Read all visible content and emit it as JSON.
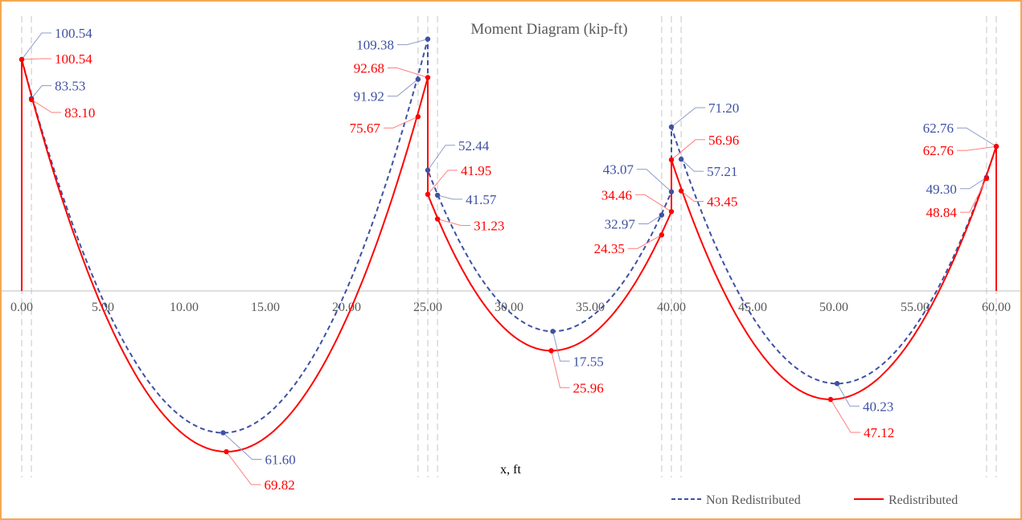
{
  "chart_data": {
    "type": "line",
    "title": "Moment Diagram (kip-ft)",
    "xlabel": "x, ft",
    "ylabel": "",
    "xlim": [
      0,
      60
    ],
    "x_ticks": [
      "0.00",
      "5.00",
      "10.00",
      "15.00",
      "20.00",
      "25.00",
      "30.00",
      "35.00",
      "40.00",
      "45.00",
      "50.00",
      "55.00",
      "60.00"
    ],
    "y_convention": "support moments plotted upward, span moments downward; labels print magnitudes",
    "legend_position": "bottom-right",
    "reference_lines_x": [
      0,
      0.6,
      24.4,
      25,
      25.6,
      39.4,
      40,
      40.6,
      59.4,
      60
    ],
    "series": [
      {
        "name": "Non Redistributed",
        "color": "#3F51A3",
        "style": "dashed",
        "spans": [
          {
            "start": [
              0,
              100.54
            ],
            "min": [
              12.4,
              -61.6
            ],
            "end": [
              25,
              109.38
            ]
          },
          {
            "start": [
              25,
              52.44
            ],
            "min": [
              32.7,
              -17.55
            ],
            "end": [
              40,
              43.07
            ]
          },
          {
            "start": [
              40,
              71.2
            ],
            "min": [
              50.2,
              -40.23
            ],
            "end": [
              60,
              62.76
            ]
          }
        ],
        "points": [
          {
            "x": 0,
            "y": 100.54,
            "label": "100.54"
          },
          {
            "x": 0.6,
            "y": 83.53,
            "label": "83.53"
          },
          {
            "x": 12.4,
            "y": -61.6,
            "label": "61.60"
          },
          {
            "x": 24.4,
            "y": 91.92,
            "label": "91.92"
          },
          {
            "x": 25,
            "y": 109.38,
            "label": "109.38"
          },
          {
            "x": 25,
            "y": 52.44,
            "label": "52.44"
          },
          {
            "x": 25.6,
            "y": 41.57,
            "label": "41.57"
          },
          {
            "x": 32.7,
            "y": -17.55,
            "label": "17.55"
          },
          {
            "x": 39.4,
            "y": 32.97,
            "label": "32.97"
          },
          {
            "x": 40,
            "y": 43.07,
            "label": "43.07"
          },
          {
            "x": 40,
            "y": 71.2,
            "label": "71.20"
          },
          {
            "x": 40.6,
            "y": 57.21,
            "label": "57.21"
          },
          {
            "x": 50.2,
            "y": -40.23,
            "label": "40.23"
          },
          {
            "x": 59.4,
            "y": 49.3,
            "label": "49.30"
          },
          {
            "x": 60,
            "y": 62.76,
            "label": "62.76"
          }
        ]
      },
      {
        "name": "Redistributed",
        "color": "#FF0000",
        "style": "solid",
        "spans": [
          {
            "start": [
              0,
              100.54
            ],
            "min": [
              12.6,
              -69.82
            ],
            "end": [
              25,
              92.68
            ]
          },
          {
            "start": [
              25,
              41.95
            ],
            "min": [
              32.6,
              -25.96
            ],
            "end": [
              40,
              34.46
            ]
          },
          {
            "start": [
              40,
              56.96
            ],
            "min": [
              49.8,
              -47.12
            ],
            "end": [
              60,
              62.76
            ]
          }
        ],
        "end_verticals": true,
        "points": [
          {
            "x": 0,
            "y": 100.54,
            "label": "100.54"
          },
          {
            "x": 0.6,
            "y": 83.1,
            "label": "83.10"
          },
          {
            "x": 12.6,
            "y": -69.82,
            "label": "69.82"
          },
          {
            "x": 24.4,
            "y": 75.67,
            "label": "75.67"
          },
          {
            "x": 25,
            "y": 92.68,
            "label": "92.68"
          },
          {
            "x": 25,
            "y": 41.95,
            "label": "41.95"
          },
          {
            "x": 25.6,
            "y": 31.23,
            "label": "31.23"
          },
          {
            "x": 32.6,
            "y": -25.96,
            "label": "25.96"
          },
          {
            "x": 39.4,
            "y": 24.35,
            "label": "24.35"
          },
          {
            "x": 40,
            "y": 34.46,
            "label": "34.46"
          },
          {
            "x": 40,
            "y": 56.96,
            "label": "56.96"
          },
          {
            "x": 40.6,
            "y": 43.45,
            "label": "43.45"
          },
          {
            "x": 49.8,
            "y": -47.12,
            "label": "47.12"
          },
          {
            "x": 59.4,
            "y": 48.84,
            "label": "48.84"
          },
          {
            "x": 60,
            "y": 62.76,
            "label": "62.76"
          }
        ]
      }
    ]
  }
}
